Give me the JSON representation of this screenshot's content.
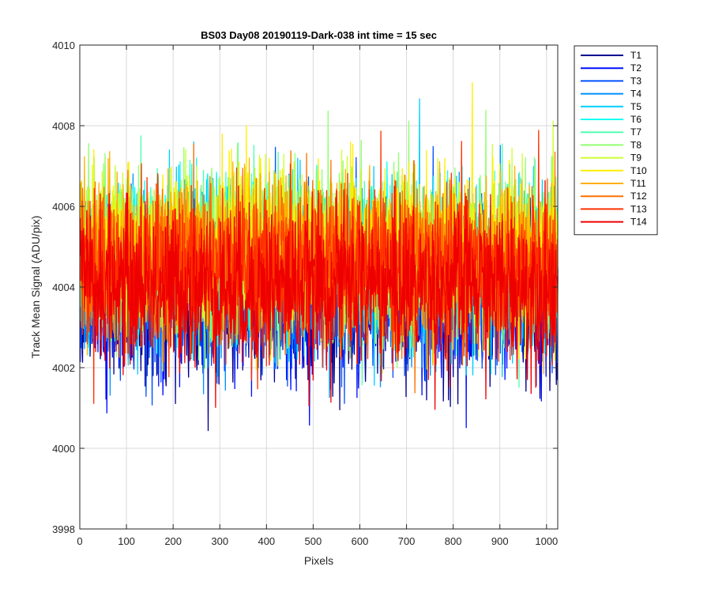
{
  "chart_data": {
    "type": "line",
    "title": "BS03 Day08 20190119-Dark-038 int time = 15 sec",
    "xlabel": "Pixels",
    "ylabel": "Track Mean Signal (ADU/pix)",
    "xlim": [
      0,
      1024
    ],
    "ylim": [
      3998,
      4010
    ],
    "xticks": [
      0,
      100,
      200,
      300,
      400,
      500,
      600,
      700,
      800,
      900,
      1000
    ],
    "yticks": [
      3998,
      4000,
      4002,
      4004,
      4006,
      4008,
      4010
    ],
    "grid": true,
    "legend_position": "outside-top-right",
    "series": [
      {
        "name": "T1",
        "color": "#00008F",
        "mean": 4003.6,
        "spread": 1.3
      },
      {
        "name": "T2",
        "color": "#0010FF",
        "mean": 4003.8,
        "spread": 1.3
      },
      {
        "name": "T3",
        "color": "#0050FF",
        "mean": 4004.0,
        "spread": 1.3
      },
      {
        "name": "T4",
        "color": "#0090FF",
        "mean": 4004.3,
        "spread": 1.3
      },
      {
        "name": "T5",
        "color": "#00CFFF",
        "mean": 4004.5,
        "spread": 1.3
      },
      {
        "name": "T6",
        "color": "#10FFEF",
        "mean": 4004.7,
        "spread": 1.3
      },
      {
        "name": "T7",
        "color": "#50FFAF",
        "mean": 4004.8,
        "spread": 1.3
      },
      {
        "name": "T8",
        "color": "#90FF6F",
        "mean": 4004.9,
        "spread": 1.3
      },
      {
        "name": "T9",
        "color": "#CFFF30",
        "mean": 4004.9,
        "spread": 1.3
      },
      {
        "name": "T10",
        "color": "#FFEF00",
        "mean": 4004.9,
        "spread": 1.3
      },
      {
        "name": "T11",
        "color": "#FFAF00",
        "mean": 4004.7,
        "spread": 1.3
      },
      {
        "name": "T12",
        "color": "#FF7000",
        "mean": 4004.6,
        "spread": 1.3
      },
      {
        "name": "T13",
        "color": "#FF3000",
        "mean": 4004.4,
        "spread": 1.3
      },
      {
        "name": "T14",
        "color": "#EF0000",
        "mean": 4004.0,
        "spread": 1.3
      }
    ]
  }
}
